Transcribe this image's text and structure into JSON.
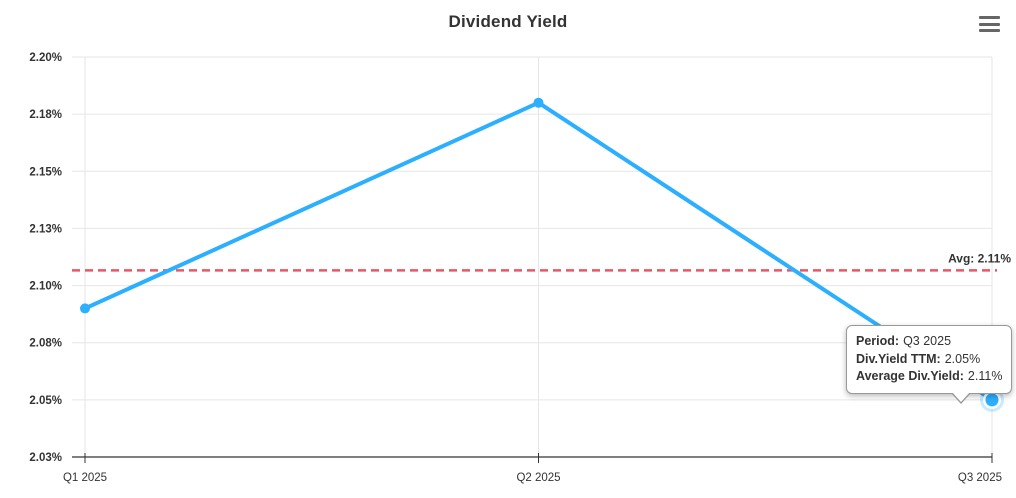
{
  "header": {
    "title": "Dividend Yield"
  },
  "chart_data": {
    "type": "line",
    "title": "Dividend Yield",
    "categories": [
      "Q1 2025",
      "Q2 2025",
      "Q3 2025"
    ],
    "series": [
      {
        "name": "Div.Yield TTM",
        "values": [
          2.09,
          2.18,
          2.05
        ],
        "color": "#2CAFFE"
      }
    ],
    "average_line": {
      "value": 2.11,
      "label": "Avg: 2.11%",
      "color": "#ED5565",
      "style": "dashed"
    },
    "y_tick_labels": [
      "2.20%",
      "2.18%",
      "2.15%",
      "2.13%",
      "2.10%",
      "2.08%",
      "2.05%",
      "2.03%"
    ],
    "ylim": [
      2.025,
      2.2
    ],
    "unit": "%",
    "xlabel": "",
    "ylabel": "",
    "grid": true,
    "legend": false,
    "highlighted_point": "Q3 2025",
    "colors": {
      "grid": "#e6e6e6",
      "axis": "#333333",
      "label": "#333333"
    }
  },
  "tooltip": {
    "rows": [
      {
        "label": "Period:",
        "value": "Q3 2025"
      },
      {
        "label": "Div.Yield TTM:",
        "value": "2.05%"
      },
      {
        "label": "Average Div.Yield:",
        "value": "2.11%"
      }
    ]
  }
}
